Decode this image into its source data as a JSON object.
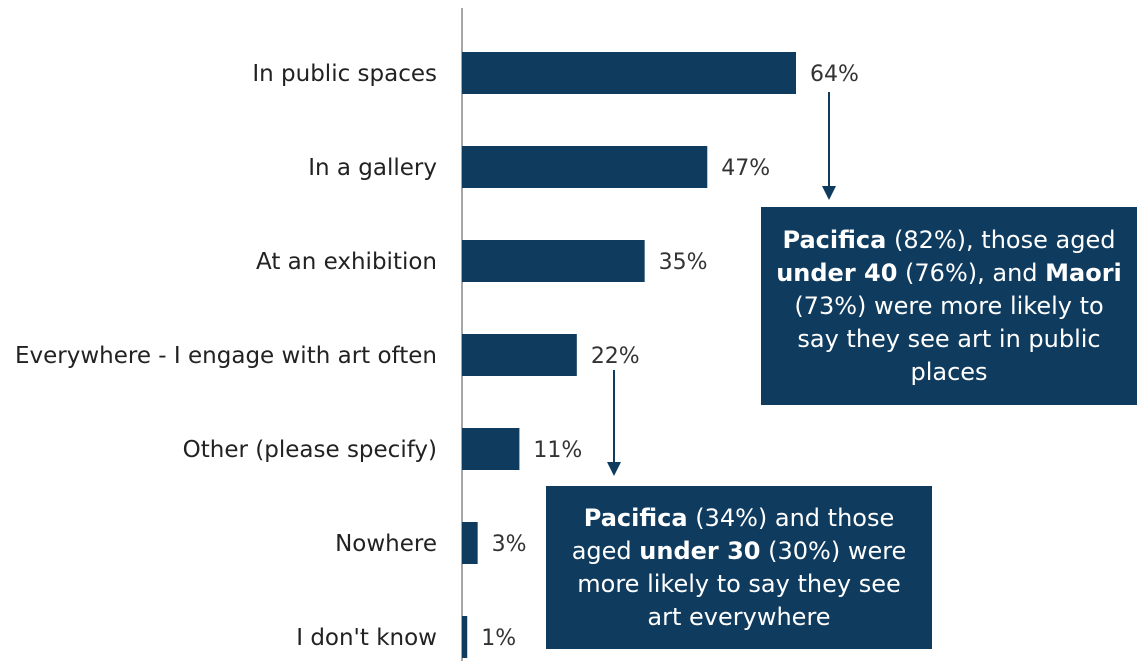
{
  "chart_data": {
    "type": "bar",
    "orientation": "horizontal",
    "categories": [
      "In public spaces",
      "In a gallery",
      "At an exhibition",
      "Everywhere - I engage with art often",
      "Other (please specify)",
      "Nowhere",
      "I don't know"
    ],
    "values": [
      64,
      47,
      35,
      22,
      11,
      3,
      1
    ],
    "value_labels": [
      "64%",
      "47%",
      "35%",
      "22%",
      "11%",
      "3%",
      "1%"
    ],
    "xlim": [
      0,
      100
    ],
    "grid": false,
    "bar_color": "#0f3b5f"
  },
  "callouts": {
    "public": {
      "parts": [
        {
          "text": "Pacifica",
          "bold": true
        },
        {
          "text": " (82%), those aged ",
          "bold": false
        },
        {
          "text": "under 40",
          "bold": true
        },
        {
          "text": " (76%), and ",
          "bold": false
        },
        {
          "text": "Maori",
          "bold": true
        },
        {
          "text": " (73%) were more likely to say they see art in public places",
          "bold": false
        }
      ]
    },
    "everywhere": {
      "parts": [
        {
          "text": "Pacifica",
          "bold": true
        },
        {
          "text": " (34%) and those aged ",
          "bold": false
        },
        {
          "text": "under 30",
          "bold": true
        },
        {
          "text": " (30%) were more likely to say they see art everywhere",
          "bold": false
        }
      ]
    }
  },
  "colors": {
    "bar": "#0f3b5f",
    "callout_bg": "#0f3b5f",
    "callout_text": "#ffffff",
    "axis": "#8a8a8a"
  }
}
